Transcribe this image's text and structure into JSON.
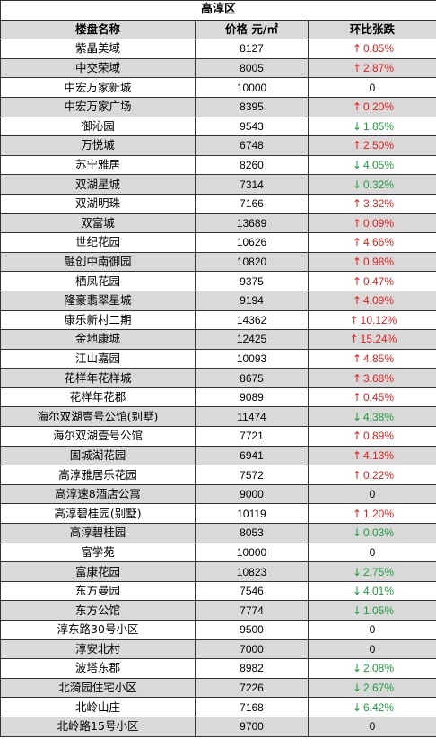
{
  "title": "高淳区",
  "headers": {
    "name": "楼盘名称",
    "price": "价格 元/㎡",
    "change": "环比张跌"
  },
  "colors": {
    "up": "#e0201c",
    "down": "#1e9c3a",
    "shade": "#d9d9d9"
  },
  "rows": [
    {
      "name": "紫晶美域",
      "price": "8127",
      "dir": "up",
      "change": "0.85%"
    },
    {
      "name": "中交荣域",
      "price": "8005",
      "dir": "up",
      "change": "2.87%"
    },
    {
      "name": "中宏万家新城",
      "price": "10000",
      "dir": "flat",
      "change": "0"
    },
    {
      "name": "中宏万家广场",
      "price": "8395",
      "dir": "up",
      "change": "0.20%"
    },
    {
      "name": "御沁园",
      "price": "9543",
      "dir": "down",
      "change": "1.85%"
    },
    {
      "name": "万悦城",
      "price": "6748",
      "dir": "up",
      "change": "2.50%"
    },
    {
      "name": "苏宁雅居",
      "price": "8260",
      "dir": "down",
      "change": "4.05%"
    },
    {
      "name": "双湖星城",
      "price": "7314",
      "dir": "down",
      "change": "0.32%"
    },
    {
      "name": "双湖明珠",
      "price": "7166",
      "dir": "up",
      "change": "3.32%"
    },
    {
      "name": "双富城",
      "price": "13689",
      "dir": "up",
      "change": "0.09%"
    },
    {
      "name": "世纪花园",
      "price": "10626",
      "dir": "up",
      "change": "4.66%"
    },
    {
      "name": "融创中南御园",
      "price": "10820",
      "dir": "up",
      "change": "0.98%"
    },
    {
      "name": "栖凤花园",
      "price": "9375",
      "dir": "up",
      "change": "0.47%"
    },
    {
      "name": "隆豪翡翠星城",
      "price": "9194",
      "dir": "up",
      "change": "4.09%"
    },
    {
      "name": "康乐新村二期",
      "price": "14362",
      "dir": "up",
      "change": "10.12%"
    },
    {
      "name": "金地康城",
      "price": "12425",
      "dir": "up",
      "change": "15.24%"
    },
    {
      "name": "江山嘉园",
      "price": "10093",
      "dir": "up",
      "change": "4.85%"
    },
    {
      "name": "花样年花样城",
      "price": "8675",
      "dir": "up",
      "change": "3.68%"
    },
    {
      "name": "花样年花郡",
      "price": "9089",
      "dir": "up",
      "change": "0.45%"
    },
    {
      "name": "海尔双湖壹号公馆(别墅)",
      "price": "11474",
      "dir": "down",
      "change": "4.38%"
    },
    {
      "name": "海尔双湖壹号公馆",
      "price": "7721",
      "dir": "up",
      "change": "0.89%"
    },
    {
      "name": "固城湖花园",
      "price": "6941",
      "dir": "up",
      "change": "4.13%"
    },
    {
      "name": "高淳雅居乐花园",
      "price": "7572",
      "dir": "up",
      "change": "0.22%"
    },
    {
      "name": "高淳速8酒店公寓",
      "price": "9000",
      "dir": "flat",
      "change": "0"
    },
    {
      "name": "高淳碧桂园(别墅)",
      "price": "10119",
      "dir": "up",
      "change": "1.20%"
    },
    {
      "name": "高淳碧桂园",
      "price": "8053",
      "dir": "down",
      "change": "0.03%"
    },
    {
      "name": "富学苑",
      "price": "10000",
      "dir": "flat",
      "change": "0"
    },
    {
      "name": "富康花园",
      "price": "10823",
      "dir": "down",
      "change": "2.75%"
    },
    {
      "name": "东方曼园",
      "price": "7546",
      "dir": "down",
      "change": "4.01%"
    },
    {
      "name": "东方公馆",
      "price": "7774",
      "dir": "down",
      "change": "1.05%"
    },
    {
      "name": "淳东路30号小区",
      "price": "9500",
      "dir": "flat",
      "change": "0"
    },
    {
      "name": "淳安北村",
      "price": "7000",
      "dir": "flat",
      "change": "0"
    },
    {
      "name": "波塔东郡",
      "price": "8982",
      "dir": "down",
      "change": "2.08%"
    },
    {
      "name": "北漪园住宅小区",
      "price": "7226",
      "dir": "down",
      "change": "2.67%"
    },
    {
      "name": "北岭山庄",
      "price": "7168",
      "dir": "down",
      "change": "6.42%"
    },
    {
      "name": "北岭路15号小区",
      "price": "9700",
      "dir": "flat",
      "change": "0"
    }
  ]
}
